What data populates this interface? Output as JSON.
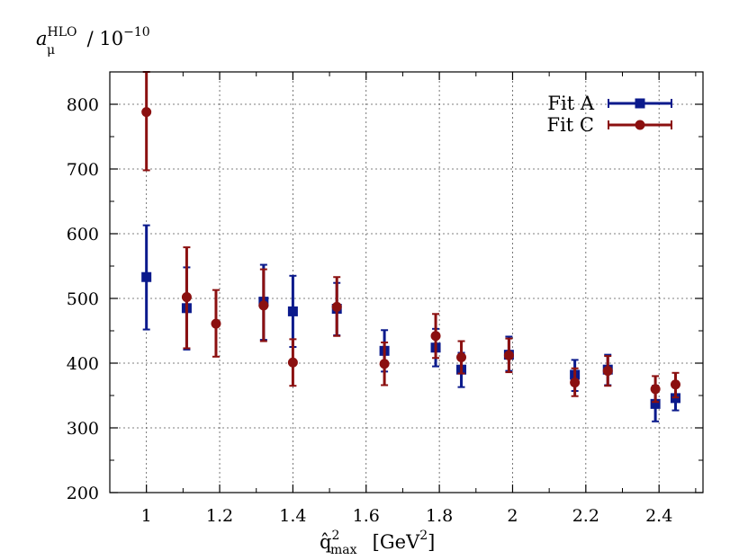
{
  "chart_data": {
    "type": "scatter",
    "ylabel": {
      "main": "a",
      "sub": "μ",
      "sup": "HLO",
      "rest": " / 10",
      "exp": "−10"
    },
    "xlabel": {
      "main": "q̂",
      "sup": "2",
      "sub": "max",
      "rest": " [GeV",
      "unit_exp": "2",
      "close": "]"
    },
    "xlim": [
      0.9,
      2.52
    ],
    "ylim": [
      200,
      850
    ],
    "x_ticks": [
      1,
      1.2,
      1.4,
      1.6,
      1.8,
      2,
      2.2,
      2.4
    ],
    "x_tick_labels": [
      "1",
      "1.2",
      "1.4",
      "1.6",
      "1.8",
      "2",
      "2.2",
      "2.4"
    ],
    "y_ticks": [
      200,
      300,
      400,
      500,
      600,
      700,
      800
    ],
    "y_tick_labels": [
      "200",
      "300",
      "400",
      "500",
      "600",
      "700",
      "800"
    ],
    "grid": true,
    "legend_position": "top-right",
    "series": [
      {
        "name": "Fit A",
        "color": "#0b1a8c",
        "marker": "square",
        "points": [
          {
            "x": 1.0,
            "y": 533,
            "lo": 452,
            "hi": 613
          },
          {
            "x": 1.11,
            "y": 485,
            "lo": 421,
            "hi": 548
          },
          {
            "x": 1.32,
            "y": 495,
            "lo": 436,
            "hi": 552
          },
          {
            "x": 1.4,
            "y": 480,
            "lo": 425,
            "hi": 535
          },
          {
            "x": 1.52,
            "y": 484,
            "lo": 443,
            "hi": 524
          },
          {
            "x": 1.65,
            "y": 419,
            "lo": 387,
            "hi": 451
          },
          {
            "x": 1.79,
            "y": 424,
            "lo": 395,
            "hi": 453
          },
          {
            "x": 1.86,
            "y": 390,
            "lo": 363,
            "hi": 416
          },
          {
            "x": 1.99,
            "y": 413,
            "lo": 388,
            "hi": 441
          },
          {
            "x": 2.17,
            "y": 382,
            "lo": 357,
            "hi": 405
          },
          {
            "x": 2.26,
            "y": 390,
            "lo": 366,
            "hi": 413
          },
          {
            "x": 2.39,
            "y": 337,
            "lo": 310,
            "hi": 365
          },
          {
            "x": 2.445,
            "y": 346,
            "lo": 327,
            "hi": 365
          }
        ]
      },
      {
        "name": "Fit C",
        "color": "#8b1010",
        "marker": "circle",
        "points": [
          {
            "x": 1.0,
            "y": 788,
            "lo": 698,
            "hi": 850
          },
          {
            "x": 1.11,
            "y": 502,
            "lo": 423,
            "hi": 579
          },
          {
            "x": 1.19,
            "y": 461,
            "lo": 410,
            "hi": 513
          },
          {
            "x": 1.32,
            "y": 489,
            "lo": 434,
            "hi": 545
          },
          {
            "x": 1.4,
            "y": 401,
            "lo": 365,
            "hi": 437
          },
          {
            "x": 1.52,
            "y": 487,
            "lo": 442,
            "hi": 533
          },
          {
            "x": 1.65,
            "y": 399,
            "lo": 366,
            "hi": 432
          },
          {
            "x": 1.79,
            "y": 442,
            "lo": 408,
            "hi": 476
          },
          {
            "x": 1.86,
            "y": 409,
            "lo": 384,
            "hi": 434
          },
          {
            "x": 1.99,
            "y": 412,
            "lo": 386,
            "hi": 438
          },
          {
            "x": 2.17,
            "y": 370,
            "lo": 349,
            "hi": 392
          },
          {
            "x": 2.26,
            "y": 388,
            "lo": 365,
            "hi": 411
          },
          {
            "x": 2.39,
            "y": 360,
            "lo": 340,
            "hi": 380
          },
          {
            "x": 2.445,
            "y": 367,
            "lo": 347,
            "hi": 385
          }
        ]
      }
    ]
  }
}
